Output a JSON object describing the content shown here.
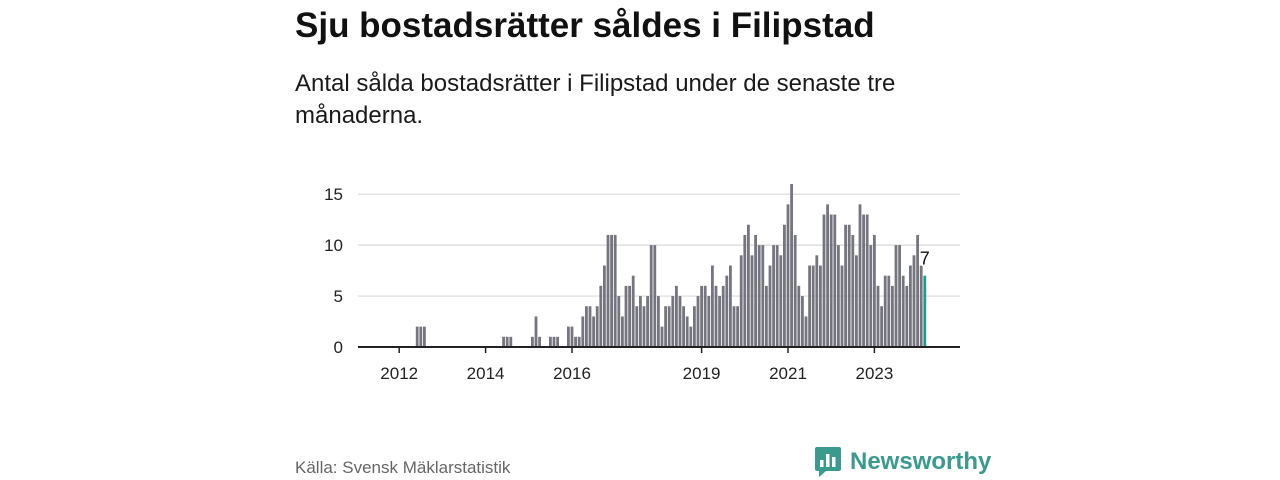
{
  "header": {
    "title": "Sju bostadsrätter såldes i Filipstad",
    "subtitle": "Antal sålda bostadsrätter i Filipstad under de senaste tre månaderna."
  },
  "footer": {
    "source": "Källa: Svensk Mäklarstatistik",
    "brand": "Newsworthy"
  },
  "colors": {
    "bar": "#75757f",
    "highlight": "#1e9a8f",
    "grid": "#d9d9d9",
    "axis": "#222222",
    "brand": "#3a9a8e"
  },
  "icons": {
    "brand": "bar-chart-speech-bubble-icon"
  },
  "chart_data": {
    "type": "bar",
    "title": "Sju bostadsrätter såldes i Filipstad",
    "subtitle": "Antal sålda bostadsrätter i Filipstad under de senaste tre månaderna.",
    "xlabel": "",
    "ylabel": "",
    "ylim": [
      0,
      16
    ],
    "yticks": [
      0,
      5,
      10,
      15
    ],
    "grid": true,
    "x_start": "2011-10",
    "x_end": "2023-12",
    "xticks": [
      {
        "label": "2012",
        "x": "2012-01"
      },
      {
        "label": "2014",
        "x": "2014-01"
      },
      {
        "label": "2016",
        "x": "2016-01"
      },
      {
        "label": "2019",
        "x": "2019-01"
      },
      {
        "label": "2021",
        "x": "2021-01"
      },
      {
        "label": "2023",
        "x": "2023-01"
      }
    ],
    "values": [
      0,
      0,
      0,
      0,
      0,
      0,
      0,
      0,
      2,
      2,
      2,
      0,
      0,
      0,
      0,
      0,
      0,
      0,
      0,
      0,
      0,
      0,
      0,
      0,
      0,
      0,
      0,
      0,
      0,
      0,
      0,
      0,
      1,
      1,
      1,
      0,
      0,
      0,
      0,
      0,
      1,
      3,
      1,
      0,
      0,
      1,
      1,
      1,
      0,
      0,
      2,
      2,
      1,
      1,
      3,
      4,
      4,
      3,
      4,
      6,
      8,
      11,
      11,
      11,
      5,
      3,
      6,
      6,
      7,
      4,
      5,
      4,
      5,
      10,
      10,
      5,
      2,
      4,
      4,
      5,
      6,
      5,
      4,
      3,
      2,
      4,
      5,
      6,
      6,
      5,
      8,
      6,
      5,
      6,
      7,
      8,
      4,
      4,
      9,
      11,
      12,
      9,
      11,
      10,
      10,
      6,
      8,
      10,
      10,
      9,
      12,
      14,
      16,
      11,
      6,
      5,
      3,
      8,
      8,
      9,
      8,
      13,
      14,
      13,
      13,
      10,
      8,
      12,
      12,
      11,
      9,
      14,
      13,
      13,
      10,
      11,
      6,
      4,
      7,
      7,
      6,
      10,
      10,
      7,
      6,
      8,
      9,
      11,
      8,
      7
    ],
    "highlight_last": true,
    "annotations": [
      {
        "label": "7"
      }
    ]
  }
}
